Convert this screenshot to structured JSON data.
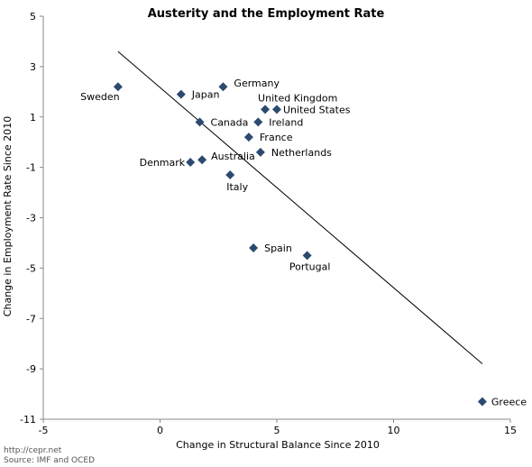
{
  "chart_data": {
    "type": "scatter",
    "title": "Austerity and the Employment Rate",
    "xlabel": "Change in Structural Balance Since 2010",
    "ylabel": "Change in Employment Rate Since 2010",
    "xlim": [
      -5,
      15
    ],
    "ylim": [
      -11,
      5
    ],
    "xticks": [
      -5,
      0,
      5,
      10,
      15
    ],
    "yticks": [
      5,
      3,
      1,
      -1,
      -3,
      -5,
      -7,
      -9,
      -11
    ],
    "grid": false,
    "marker": "diamond",
    "marker_color": "#2c4a70",
    "points": [
      {
        "label": "Sweden",
        "x": -1.8,
        "y": 2.2
      },
      {
        "label": "Japan",
        "x": 0.9,
        "y": 1.9
      },
      {
        "label": "Germany",
        "x": 2.7,
        "y": 2.2
      },
      {
        "label": "United Kingdom",
        "x": 4.5,
        "y": 1.3
      },
      {
        "label": "United States",
        "x": 5.0,
        "y": 1.3
      },
      {
        "label": "Canada",
        "x": 1.7,
        "y": 0.8
      },
      {
        "label": "Ireland",
        "x": 4.2,
        "y": 0.8
      },
      {
        "label": "France",
        "x": 3.8,
        "y": 0.2
      },
      {
        "label": "Netherlands",
        "x": 4.3,
        "y": -0.4
      },
      {
        "label": "Denmark",
        "x": 1.3,
        "y": -0.8
      },
      {
        "label": "Australia",
        "x": 1.8,
        "y": -0.7
      },
      {
        "label": "Italy",
        "x": 3.0,
        "y": -1.3
      },
      {
        "label": "Spain",
        "x": 4.0,
        "y": -4.2
      },
      {
        "label": "Portugal",
        "x": 6.3,
        "y": -4.5
      },
      {
        "label": "Greece",
        "x": 13.8,
        "y": -10.3
      }
    ],
    "trendline": {
      "x": [
        -1.8,
        13.8
      ],
      "y": [
        3.6,
        -8.8
      ],
      "color": "#000000"
    }
  },
  "footer": {
    "url": "http://cepr.net",
    "source": "Source: IMF and OCED"
  }
}
